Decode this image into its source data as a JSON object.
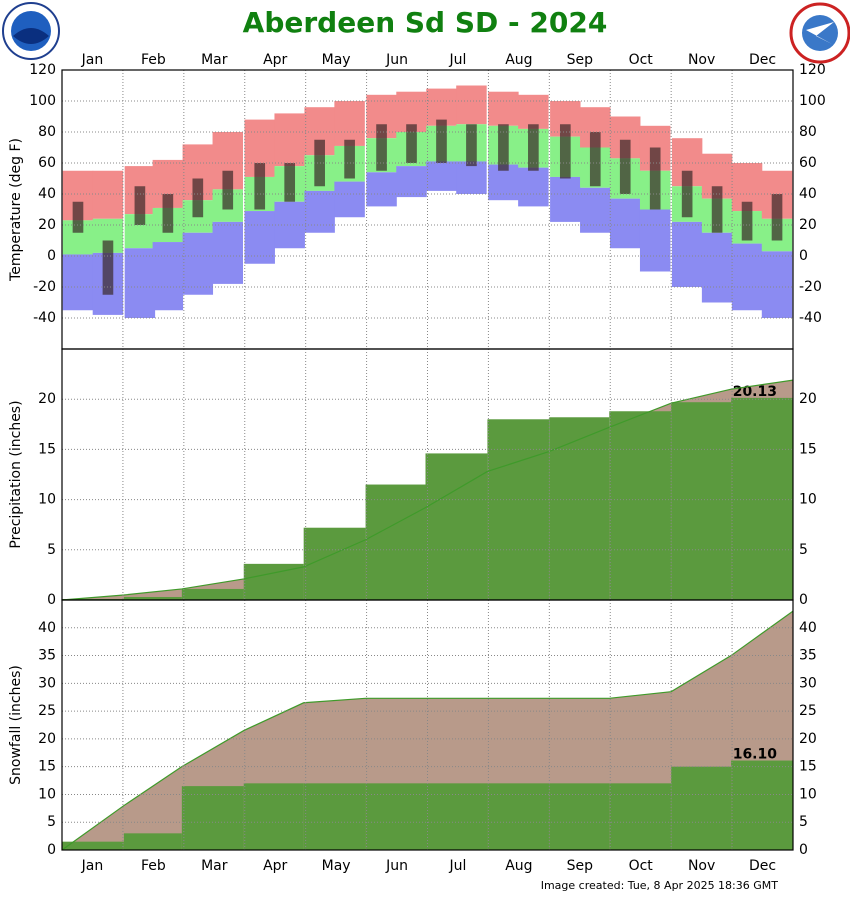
{
  "title": "Aberdeen Sd SD - 2024",
  "months": [
    "Jan",
    "Feb",
    "Mar",
    "Apr",
    "May",
    "Jun",
    "Jul",
    "Aug",
    "Sep",
    "Oct",
    "Nov",
    "Dec"
  ],
  "footer": "Image created: Tue, 8 Apr 2025 18:36 GMT",
  "chart_data": [
    {
      "type": "range",
      "ylabel": "Temperature (deg F)",
      "xlim": [
        0,
        366
      ],
      "ylim": [
        -60,
        120
      ],
      "yticks": [
        120,
        100,
        80,
        60,
        40,
        20,
        0,
        -20,
        -40
      ],
      "grid": true,
      "x": [
        8,
        23,
        39,
        53,
        68,
        83,
        99,
        114,
        129,
        144,
        160,
        175,
        190,
        205,
        221,
        236,
        252,
        267,
        282,
        297,
        313,
        328,
        343,
        358
      ],
      "record_high": [
        55,
        55,
        58,
        62,
        72,
        80,
        88,
        92,
        96,
        100,
        104,
        106,
        108,
        110,
        106,
        104,
        100,
        96,
        90,
        84,
        76,
        66,
        60,
        55
      ],
      "normal_high": [
        23,
        24,
        27,
        31,
        36,
        43,
        51,
        58,
        65,
        71,
        76,
        80,
        84,
        85,
        84,
        82,
        77,
        70,
        63,
        55,
        45,
        37,
        29,
        24
      ],
      "normal_low": [
        1,
        2,
        5,
        9,
        15,
        22,
        29,
        35,
        42,
        48,
        54,
        58,
        61,
        61,
        59,
        57,
        51,
        44,
        37,
        30,
        22,
        15,
        8,
        3
      ],
      "record_low": [
        -35,
        -38,
        -40,
        -35,
        -25,
        -18,
        -5,
        5,
        15,
        25,
        32,
        38,
        42,
        40,
        36,
        32,
        22,
        15,
        5,
        -10,
        -20,
        -30,
        -35,
        -40
      ],
      "observed_high": [
        35,
        10,
        45,
        40,
        50,
        55,
        60,
        60,
        75,
        75,
        85,
        85,
        88,
        85,
        85,
        85,
        85,
        80,
        75,
        70,
        55,
        45,
        35,
        40
      ],
      "observed_low": [
        15,
        -25,
        20,
        15,
        25,
        30,
        30,
        35,
        45,
        50,
        55,
        60,
        60,
        58,
        55,
        55,
        50,
        45,
        40,
        30,
        25,
        15,
        10,
        10
      ],
      "colors": {
        "record_high": "#f28b8b",
        "normal": "#88f088",
        "record_low": "#8b8bf2",
        "observed": "#3a2a2a"
      }
    },
    {
      "type": "area",
      "ylabel": "Precipitation (inches)",
      "xlim": [
        0,
        366
      ],
      "ylim": [
        0,
        25
      ],
      "yticks": [
        0,
        5,
        10,
        15,
        20
      ],
      "grid": true,
      "x": [
        0,
        31,
        60,
        91,
        121,
        152,
        182,
        213,
        244,
        274,
        305,
        335,
        366
      ],
      "normal": [
        0,
        0.5,
        1.1,
        2.1,
        3.3,
        6.0,
        9.2,
        12.8,
        14.8,
        17.2,
        19.6,
        21.0,
        21.9
      ],
      "observed": [
        0,
        0.1,
        0.3,
        1.1,
        3.6,
        7.2,
        11.5,
        14.6,
        18.0,
        18.2,
        18.8,
        19.7,
        20.13
      ],
      "value_labels": [
        null,
        null,
        null,
        null,
        null,
        null,
        null,
        null,
        null,
        null,
        null,
        null,
        "20.13"
      ],
      "colors": {
        "normal": "#b89a8a",
        "observed": "#5b9a3e",
        "line": "#3f9a2a"
      }
    },
    {
      "type": "area",
      "ylabel": "Snowfall (inches)",
      "xlim": [
        0,
        366
      ],
      "ylim": [
        0,
        45
      ],
      "yticks": [
        0,
        5,
        10,
        15,
        20,
        25,
        30,
        35,
        40
      ],
      "grid": true,
      "x": [
        0,
        31,
        60,
        91,
        121,
        152,
        182,
        213,
        244,
        274,
        305,
        335,
        366
      ],
      "normal": [
        0,
        8,
        15,
        21.5,
        26.5,
        27.3,
        27.3,
        27.3,
        27.3,
        27.3,
        28.5,
        35,
        43
      ],
      "observed": [
        0,
        1.5,
        3,
        11.5,
        12,
        12,
        12,
        12,
        12,
        12,
        12,
        15,
        16.1
      ],
      "value_labels": [
        null,
        null,
        null,
        null,
        null,
        null,
        null,
        null,
        null,
        null,
        null,
        null,
        "16.10"
      ],
      "colors": {
        "normal": "#b89a8a",
        "observed": "#5b9a3e",
        "line": "#3f9a2a"
      }
    }
  ]
}
